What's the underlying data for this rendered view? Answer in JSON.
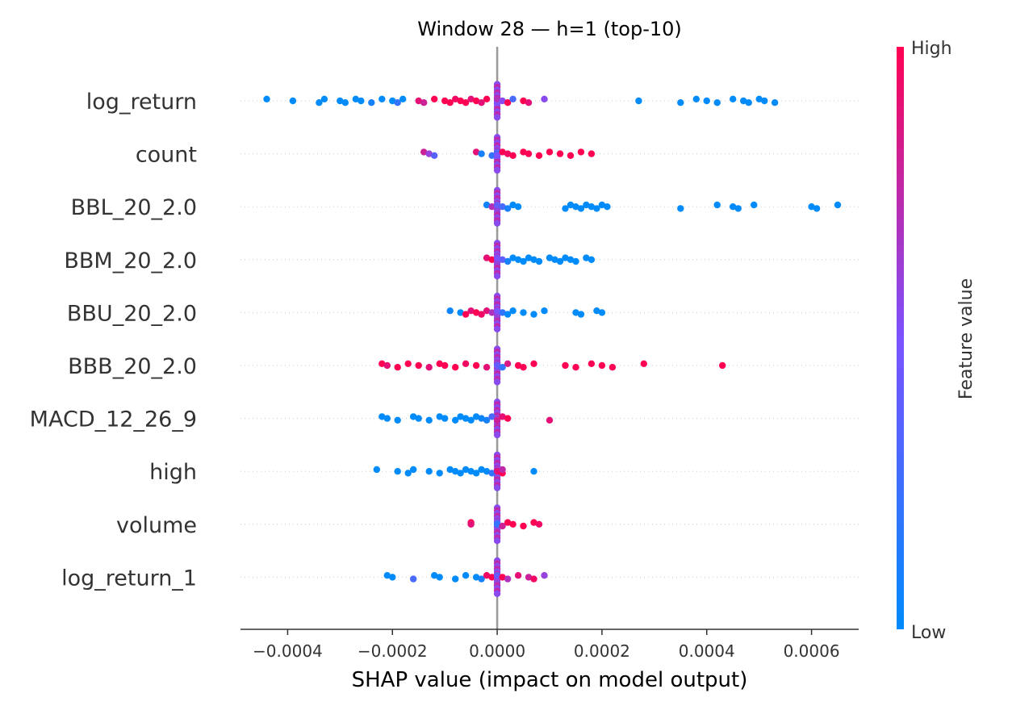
{
  "chart_data": {
    "type": "scatter",
    "subtype": "shap-beeswarm",
    "title": "Window 28 — h=1 (top-10)",
    "xlabel": "SHAP value (impact on model output)",
    "xlim": [
      -0.00049,
      0.00069
    ],
    "xticks": [
      -0.0004,
      -0.0002,
      0.0,
      0.0002,
      0.0004,
      0.0006
    ],
    "xtick_labels": [
      "−0.0004",
      "−0.0002",
      "0.0000",
      "0.0002",
      "0.0004",
      "0.0006"
    ],
    "grid": "dotted horizontal row lines",
    "zero_line": true,
    "colorbar": {
      "label": "Feature value",
      "high_label": "High",
      "low_label": "Low",
      "low_color": "#008bfb",
      "mid_color": "#7c52ff",
      "high_color": "#ff0052"
    },
    "features": [
      {
        "name": "log_return",
        "points": [
          [
            -0.00044,
            0
          ],
          [
            -0.00039,
            0
          ],
          [
            -0.00034,
            0
          ],
          [
            -0.00033,
            0
          ],
          [
            -0.0003,
            0
          ],
          [
            -0.00029,
            0
          ],
          [
            -0.00027,
            0
          ],
          [
            -0.00026,
            0
          ],
          [
            -0.00024,
            0.1
          ],
          [
            -0.00022,
            0
          ],
          [
            -0.0002,
            0
          ],
          [
            -0.00019,
            0.2
          ],
          [
            -0.00018,
            0
          ],
          [
            -0.00015,
            0.9
          ],
          [
            -0.00014,
            0.8
          ],
          [
            -0.00012,
            1
          ],
          [
            -0.0001,
            1
          ],
          [
            -9e-05,
            1
          ],
          [
            -8e-05,
            0.95
          ],
          [
            -7e-05,
            1
          ],
          [
            -6e-05,
            1
          ],
          [
            -5e-05,
            0.9
          ],
          [
            -4e-05,
            1
          ],
          [
            -3e-05,
            0.9
          ],
          [
            -2e-05,
            1
          ],
          [
            0.0,
            0.6
          ],
          [
            0.0,
            0.5
          ],
          [
            0.0,
            0.7
          ],
          [
            1e-05,
            0.55
          ],
          [
            2e-05,
            1
          ],
          [
            3e-05,
            0.3
          ],
          [
            5e-05,
            1
          ],
          [
            6e-05,
            0.9
          ],
          [
            9e-05,
            0.55
          ],
          [
            0.00027,
            0
          ],
          [
            0.00035,
            0
          ],
          [
            0.00038,
            0
          ],
          [
            0.0004,
            0
          ],
          [
            0.00042,
            0
          ],
          [
            0.00045,
            0
          ],
          [
            0.00047,
            0
          ],
          [
            0.00048,
            0
          ],
          [
            0.0005,
            0
          ],
          [
            0.00051,
            0
          ],
          [
            0.00053,
            0
          ]
        ]
      },
      {
        "name": "count",
        "points": [
          [
            -0.00014,
            0.8
          ],
          [
            -0.00013,
            0.6
          ],
          [
            -0.00012,
            0.35
          ],
          [
            -4e-05,
            0.9
          ],
          [
            -3e-05,
            0.1
          ],
          [
            -1e-05,
            0.2
          ],
          [
            0.0,
            0.4
          ],
          [
            0.0,
            0.3
          ],
          [
            0.0,
            0.5
          ],
          [
            1e-05,
            1
          ],
          [
            2e-05,
            0.95
          ],
          [
            3e-05,
            1
          ],
          [
            5e-05,
            1
          ],
          [
            6e-05,
            1
          ],
          [
            8e-05,
            1
          ],
          [
            0.0001,
            1
          ],
          [
            0.00012,
            1
          ],
          [
            0.00014,
            1
          ],
          [
            0.00016,
            1
          ],
          [
            0.00018,
            1
          ]
        ]
      },
      {
        "name": "BBL_20_2.0",
        "points": [
          [
            -2e-05,
            0.05
          ],
          [
            -1e-05,
            0.7
          ],
          [
            0.0,
            0.6
          ],
          [
            0.0,
            0.4
          ],
          [
            1e-05,
            0.3
          ],
          [
            2e-05,
            0.1
          ],
          [
            3e-05,
            0
          ],
          [
            4e-05,
            0
          ],
          [
            0.00013,
            0
          ],
          [
            0.00014,
            0
          ],
          [
            0.00015,
            0
          ],
          [
            0.00016,
            0
          ],
          [
            0.00017,
            0
          ],
          [
            0.00018,
            0
          ],
          [
            0.00019,
            0
          ],
          [
            0.0002,
            0
          ],
          [
            0.00021,
            0
          ],
          [
            0.00035,
            0
          ],
          [
            0.00042,
            0
          ],
          [
            0.00045,
            0
          ],
          [
            0.00046,
            0
          ],
          [
            0.00049,
            0
          ],
          [
            0.0006,
            0
          ],
          [
            0.00061,
            0
          ],
          [
            0.00065,
            0
          ]
        ]
      },
      {
        "name": "BBM_20_2.0",
        "points": [
          [
            -2e-05,
            0.9
          ],
          [
            -1e-05,
            1
          ],
          [
            0.0,
            0.6
          ],
          [
            0.0,
            0.5
          ],
          [
            1e-05,
            0.4
          ],
          [
            2e-05,
            0.1
          ],
          [
            3e-05,
            0
          ],
          [
            4e-05,
            0
          ],
          [
            5e-05,
            0
          ],
          [
            6e-05,
            0
          ],
          [
            7e-05,
            0
          ],
          [
            8e-05,
            0
          ],
          [
            0.0001,
            0
          ],
          [
            0.00011,
            0
          ],
          [
            0.00012,
            0
          ],
          [
            0.00013,
            0
          ],
          [
            0.00014,
            0
          ],
          [
            0.00015,
            0
          ],
          [
            0.00017,
            0
          ],
          [
            0.00018,
            0
          ]
        ]
      },
      {
        "name": "BBU_20_2.0",
        "points": [
          [
            -9e-05,
            0.05
          ],
          [
            -7e-05,
            0
          ],
          [
            -6e-05,
            1
          ],
          [
            -5e-05,
            0.9
          ],
          [
            -4e-05,
            1
          ],
          [
            -3e-05,
            0.95
          ],
          [
            -2e-05,
            0.9
          ],
          [
            -1e-05,
            0.7
          ],
          [
            0.0,
            0.6
          ],
          [
            0.0,
            0.5
          ],
          [
            1e-05,
            0.2
          ],
          [
            2e-05,
            0
          ],
          [
            3e-05,
            0
          ],
          [
            5e-05,
            0
          ],
          [
            7e-05,
            0
          ],
          [
            9e-05,
            0
          ],
          [
            0.00015,
            0
          ],
          [
            0.00016,
            0
          ],
          [
            0.00019,
            0
          ],
          [
            0.0002,
            0
          ]
        ]
      },
      {
        "name": "BBB_20_2.0",
        "points": [
          [
            -0.00022,
            1
          ],
          [
            -0.00021,
            0.9
          ],
          [
            -0.00019,
            1
          ],
          [
            -0.00017,
            1
          ],
          [
            -0.00015,
            1
          ],
          [
            -0.00013,
            0.9
          ],
          [
            -0.00011,
            1
          ],
          [
            -0.0001,
            1
          ],
          [
            -8e-05,
            1
          ],
          [
            -6e-05,
            0.95
          ],
          [
            -4e-05,
            1
          ],
          [
            -2e-05,
            0.9
          ],
          [
            0.0,
            0.6
          ],
          [
            0.0,
            0.4
          ],
          [
            1e-05,
            0.2
          ],
          [
            2e-05,
            0.85
          ],
          [
            4e-05,
            1
          ],
          [
            5e-05,
            1
          ],
          [
            7e-05,
            1
          ],
          [
            0.00013,
            1
          ],
          [
            0.00015,
            1
          ],
          [
            0.00018,
            1
          ],
          [
            0.0002,
            1
          ],
          [
            0.00022,
            1
          ],
          [
            0.00028,
            1
          ],
          [
            0.00043,
            1
          ]
        ]
      },
      {
        "name": "MACD_12_26_9",
        "points": [
          [
            -0.00022,
            0
          ],
          [
            -0.00021,
            0
          ],
          [
            -0.00019,
            0
          ],
          [
            -0.00016,
            0
          ],
          [
            -0.00015,
            0
          ],
          [
            -0.00013,
            0
          ],
          [
            -0.00011,
            0
          ],
          [
            -0.0001,
            0
          ],
          [
            -8e-05,
            0
          ],
          [
            -7e-05,
            0
          ],
          [
            -6e-05,
            0
          ],
          [
            -5e-05,
            0
          ],
          [
            -4e-05,
            0
          ],
          [
            -3e-05,
            0.05
          ],
          [
            -2e-05,
            0.1
          ],
          [
            -1e-05,
            0.3
          ],
          [
            0.0,
            0.6
          ],
          [
            0.0,
            0.8
          ],
          [
            1e-05,
            0.9
          ],
          [
            2e-05,
            1
          ],
          [
            0.0001,
            0.9
          ]
        ]
      },
      {
        "name": "high",
        "points": [
          [
            -0.00023,
            0
          ],
          [
            -0.00019,
            0
          ],
          [
            -0.00017,
            0
          ],
          [
            -0.00016,
            0
          ],
          [
            -0.00013,
            0
          ],
          [
            -0.00011,
            0
          ],
          [
            -9e-05,
            0
          ],
          [
            -8e-05,
            0
          ],
          [
            -7e-05,
            0
          ],
          [
            -6e-05,
            0
          ],
          [
            -5e-05,
            0
          ],
          [
            -4e-05,
            0
          ],
          [
            -3e-05,
            0
          ],
          [
            -2e-05,
            0
          ],
          [
            -1e-05,
            0.2
          ],
          [
            0.0,
            0.6
          ],
          [
            0.0,
            0.9
          ],
          [
            1e-05,
            1
          ],
          [
            1e-05,
            0.75
          ],
          [
            7e-05,
            0
          ]
        ]
      },
      {
        "name": "volume",
        "points": [
          [
            -5e-05,
            1
          ],
          [
            -5e-05,
            0.9
          ],
          [
            0.0,
            0.6
          ],
          [
            0.0,
            0.4
          ],
          [
            0.0,
            0.2
          ],
          [
            1e-05,
            0.8
          ],
          [
            2e-05,
            1
          ],
          [
            3e-05,
            1
          ],
          [
            5e-05,
            1
          ],
          [
            7e-05,
            1
          ],
          [
            8e-05,
            0.95
          ]
        ]
      },
      {
        "name": "log_return_1",
        "points": [
          [
            -0.00021,
            0
          ],
          [
            -0.0002,
            0
          ],
          [
            -0.00016,
            0.3
          ],
          [
            -0.00012,
            0
          ],
          [
            -0.00011,
            0
          ],
          [
            -8e-05,
            0
          ],
          [
            -6e-05,
            0
          ],
          [
            -4e-05,
            0
          ],
          [
            -3e-05,
            0.1
          ],
          [
            -2e-05,
            0.95
          ],
          [
            -1e-05,
            1
          ],
          [
            0.0,
            0.6
          ],
          [
            0.0,
            0.4
          ],
          [
            1e-05,
            1
          ],
          [
            2e-05,
            0.7
          ],
          [
            4e-05,
            0.9
          ],
          [
            6e-05,
            0.8
          ],
          [
            7e-05,
            0.95
          ],
          [
            9e-05,
            0.6
          ]
        ]
      }
    ]
  }
}
